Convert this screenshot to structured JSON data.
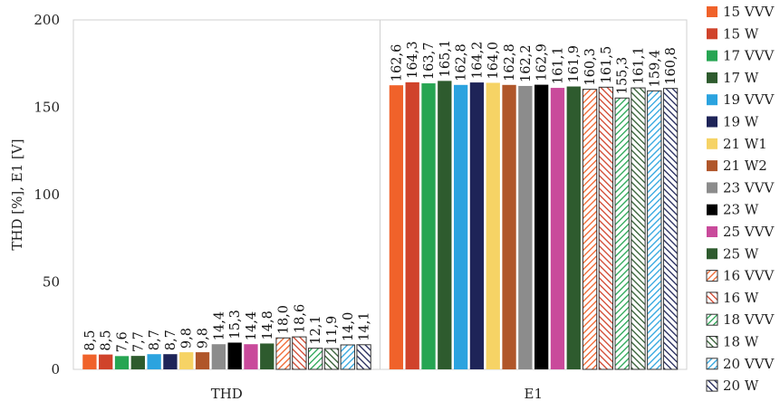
{
  "chart_data": {
    "type": "bar",
    "title": "",
    "xlabel": "",
    "ylabel": "THD [%], E1 [V]",
    "ylim": [
      0,
      200
    ],
    "yticks": [
      0,
      50,
      100,
      150,
      200
    ],
    "grid": false,
    "legend_position": "right",
    "categories": [
      "THD",
      "E1"
    ],
    "series": [
      {
        "name": "15 VVV",
        "values": [
          8.5,
          162.6
        ],
        "labels": [
          "8,5",
          "162,6"
        ],
        "color": "#F0622A",
        "pattern": "solid"
      },
      {
        "name": "15 W",
        "values": [
          8.5,
          164.3
        ],
        "labels": [
          "8,5",
          "164,3"
        ],
        "color": "#D0432B",
        "pattern": "solid"
      },
      {
        "name": "17 VVV",
        "values": [
          7.6,
          163.7
        ],
        "labels": [
          "7,6",
          "163,7"
        ],
        "color": "#26A552",
        "pattern": "solid"
      },
      {
        "name": "17 W",
        "values": [
          7.7,
          165.1
        ],
        "labels": [
          "7,7",
          "165,1"
        ],
        "color": "#2E5B2E",
        "pattern": "solid"
      },
      {
        "name": "19 VVV",
        "values": [
          8.7,
          162.8
        ],
        "labels": [
          "8,7",
          "162,8"
        ],
        "color": "#2BA3DF",
        "pattern": "solid"
      },
      {
        "name": "19 W",
        "values": [
          8.7,
          164.2
        ],
        "labels": [
          "8,7",
          "164,2"
        ],
        "color": "#1E2458",
        "pattern": "solid"
      },
      {
        "name": "21 W1",
        "values": [
          9.8,
          164.0
        ],
        "labels": [
          "9,8",
          "164,0"
        ],
        "color": "#F6D365",
        "pattern": "solid"
      },
      {
        "name": "21 W2",
        "values": [
          9.8,
          162.8
        ],
        "labels": [
          "9,8",
          "162,8"
        ],
        "color": "#B0562A",
        "pattern": "solid"
      },
      {
        "name": "23 VVV",
        "values": [
          14.4,
          162.2
        ],
        "labels": [
          "14,4",
          "162,2"
        ],
        "color": "#8C8C8C",
        "pattern": "solid"
      },
      {
        "name": "23 W",
        "values": [
          15.3,
          162.9
        ],
        "labels": [
          "15,3",
          "162,9"
        ],
        "color": "#000000",
        "pattern": "solid"
      },
      {
        "name": "25 VVV",
        "values": [
          14.4,
          161.1
        ],
        "labels": [
          "14,4",
          "161,1"
        ],
        "color": "#C94A9B",
        "pattern": "solid"
      },
      {
        "name": "25 W",
        "values": [
          14.8,
          161.9
        ],
        "labels": [
          "14,8",
          "161,9"
        ],
        "color": "#2E5B2E",
        "pattern": "solid"
      },
      {
        "name": "16 VVV",
        "values": [
          18.0,
          160.3
        ],
        "labels": [
          "18,0",
          "160,3"
        ],
        "color": "#F0622A",
        "pattern": "hatch"
      },
      {
        "name": "16 W",
        "values": [
          18.6,
          161.5
        ],
        "labels": [
          "18,6",
          "161,5"
        ],
        "color": "#D0432B",
        "pattern": "hatch"
      },
      {
        "name": "18 VVV",
        "values": [
          12.1,
          155.3
        ],
        "labels": [
          "12,1",
          "155,3"
        ],
        "color": "#26A552",
        "pattern": "hatch"
      },
      {
        "name": "18 W",
        "values": [
          11.9,
          161.1
        ],
        "labels": [
          "11,9",
          "161,1"
        ],
        "color": "#2E5B2E",
        "pattern": "hatch"
      },
      {
        "name": "20 VVV",
        "values": [
          14.0,
          159.4
        ],
        "labels": [
          "14,0",
          "159,4"
        ],
        "color": "#2BA3DF",
        "pattern": "hatch"
      },
      {
        "name": "20 W",
        "values": [
          14.1,
          160.8
        ],
        "labels": [
          "14,1",
          "160,8"
        ],
        "color": "#1E2458",
        "pattern": "hatch"
      }
    ]
  }
}
